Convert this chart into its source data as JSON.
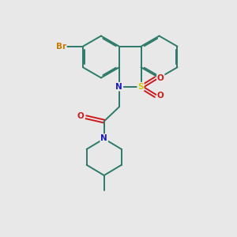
{
  "bg_color": "#e8e8e8",
  "bond_color": "#2d7a6a",
  "bond_width": 1.4,
  "atom_colors": {
    "Br": "#cc7700",
    "N": "#1a1acc",
    "S": "#cccc00",
    "O": "#cc1a1a",
    "C": "#2d7a6a"
  },
  "figsize": [
    3.0,
    3.0
  ],
  "dpi": 100,
  "dbo": 0.055
}
